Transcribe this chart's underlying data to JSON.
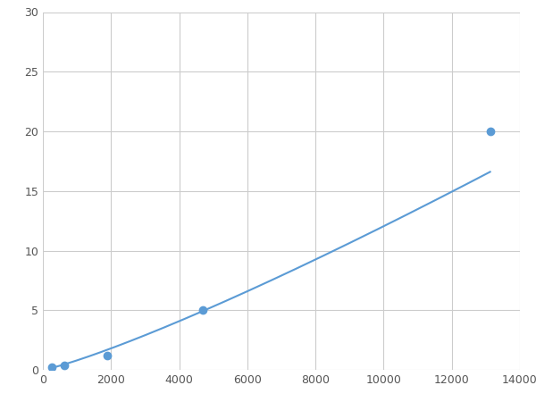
{
  "x_data": [
    250,
    625,
    1875,
    4688,
    13125
  ],
  "y_data": [
    0.2,
    0.4,
    1.2,
    5.0,
    20.0
  ],
  "line_color": "#5b9bd5",
  "marker_color": "#5b9bd5",
  "marker_size": 6,
  "line_width": 1.5,
  "xlim": [
    0,
    14000
  ],
  "ylim": [
    0,
    30
  ],
  "xticks": [
    0,
    2000,
    4000,
    6000,
    8000,
    10000,
    12000,
    14000
  ],
  "yticks": [
    0,
    5,
    10,
    15,
    20,
    25,
    30
  ],
  "grid_color": "#cccccc",
  "background_color": "#ffffff",
  "figsize": [
    6.0,
    4.5
  ],
  "dpi": 100
}
